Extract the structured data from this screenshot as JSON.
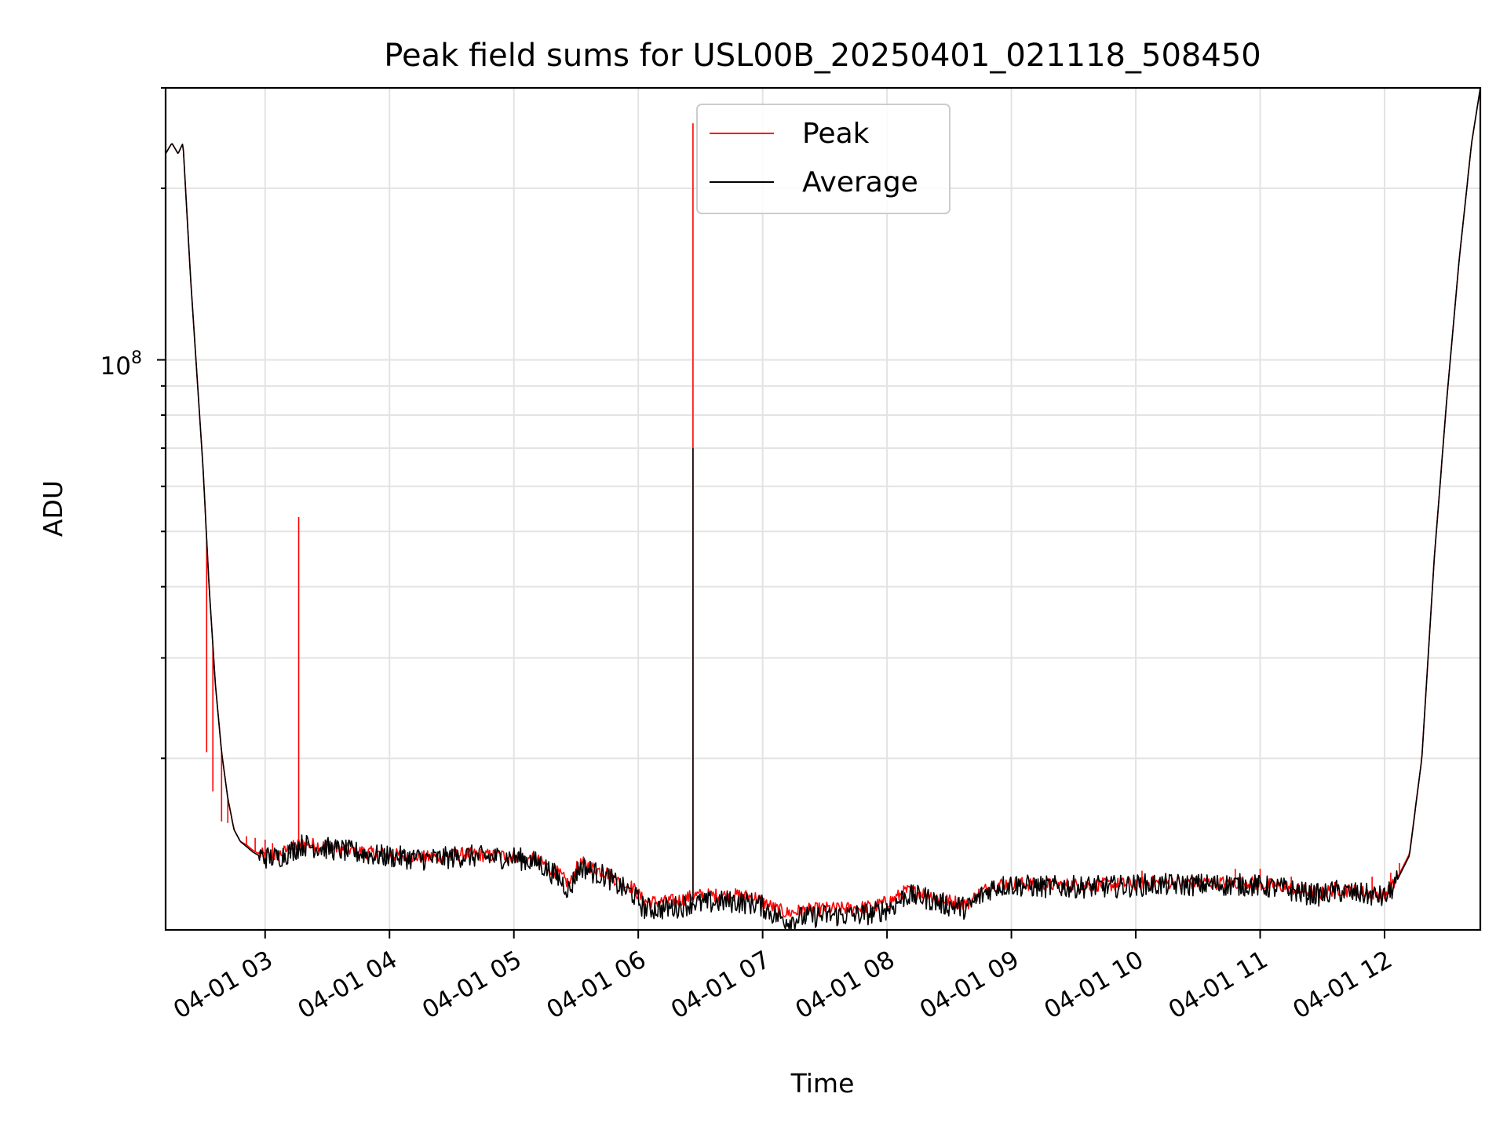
{
  "chart_data": {
    "type": "line",
    "title": "Peak field sums for USL00B_20250401_021118_508450",
    "xlabel": "Time",
    "ylabel": "ADU",
    "y_scale": "log",
    "x_range_hours": [
      2.2,
      12.77
    ],
    "ylim": [
      10000000,
      300000000
    ],
    "y_major_tick": {
      "value": 100000000,
      "label_base": "10",
      "label_exp": "8"
    },
    "x_ticks": [
      "04-01 03",
      "04-01 04",
      "04-01 05",
      "04-01 06",
      "04-01 07",
      "04-01 08",
      "04-01 09",
      "04-01 10",
      "04-01 11",
      "04-01 12"
    ],
    "grid": true,
    "legend": {
      "position": "top-center",
      "entries": [
        "Peak",
        "Average"
      ]
    },
    "colors": {
      "Peak": "#ff0000",
      "Average": "#000000"
    },
    "x": [
      2.2,
      2.25,
      2.3,
      2.34,
      2.4,
      2.5,
      2.55,
      2.6,
      2.65,
      2.7,
      2.75,
      2.8,
      2.85,
      2.9,
      2.95,
      3.0,
      3.1,
      3.2,
      3.3,
      3.4,
      3.5,
      3.7,
      3.9,
      4.1,
      4.3,
      4.5,
      4.6,
      4.8,
      5.0,
      5.2,
      5.35,
      5.45,
      5.5,
      5.55,
      5.65,
      5.75,
      5.85,
      5.95,
      6.05,
      6.2,
      6.35,
      6.45,
      6.5,
      6.65,
      6.8,
      6.95,
      7.0,
      7.1,
      7.2,
      7.3,
      7.5,
      7.7,
      7.9,
      8.05,
      8.15,
      8.3,
      8.45,
      8.55,
      8.65,
      8.72,
      8.85,
      9.0,
      9.2,
      9.5,
      9.8,
      10.1,
      10.4,
      10.7,
      10.9,
      11.05,
      11.2,
      11.35,
      11.5,
      11.6,
      11.75,
      11.9,
      12.0,
      12.05,
      12.1,
      12.2,
      12.3,
      12.4,
      12.5,
      12.6,
      12.7,
      12.77
    ],
    "series": [
      {
        "name": "Average",
        "values": [
          230000000,
          240000000,
          230000000,
          240000000,
          140000000,
          65000000,
          40000000,
          27000000,
          20500000,
          17000000,
          15000000,
          14300000,
          14000000,
          13700000,
          13500000,
          13400000,
          13400000,
          13700000,
          14100000,
          14000000,
          13900000,
          13700000,
          13500000,
          13400000,
          13300000,
          13400000,
          13500000,
          13400000,
          13400000,
          13100000,
          12400000,
          11700000,
          12600000,
          12900000,
          12600000,
          12400000,
          11900000,
          11600000,
          10900000,
          10900000,
          11000000,
          11200000,
          11100000,
          11200000,
          11200000,
          11100000,
          11000000,
          10600000,
          10400000,
          10500000,
          10600000,
          10600000,
          10700000,
          11000000,
          11500000,
          11400000,
          11100000,
          11000000,
          10900000,
          11300000,
          11900000,
          12000000,
          11900000,
          11900000,
          11900000,
          12000000,
          12000000,
          12000000,
          12000000,
          11900000,
          11800000,
          11600000,
          11500000,
          11700000,
          11600000,
          11500000,
          11400000,
          11700000,
          12200000,
          13500000,
          20000000,
          45000000,
          85000000,
          150000000,
          240000000,
          300000000
        ]
      },
      {
        "name": "Peak",
        "values": [
          230000000,
          240000000,
          230000000,
          240000000,
          140000000,
          65000000,
          40000000,
          27000000,
          20500000,
          17000000,
          15000000,
          14300000,
          14100000,
          13800000,
          13600000,
          13500000,
          13500000,
          13900000,
          14200000,
          14100000,
          14000000,
          13800000,
          13600000,
          13500000,
          13400000,
          13500000,
          13600000,
          13500000,
          13500000,
          13200000,
          12600000,
          12000000,
          12800000,
          13100000,
          12800000,
          12600000,
          12100000,
          11900000,
          11200000,
          11200000,
          11300000,
          11500000,
          11500000,
          11500000,
          11500000,
          11400000,
          11200000,
          10900000,
          10700000,
          10800000,
          10900000,
          10900000,
          11000000,
          11300000,
          11700000,
          11600000,
          11300000,
          11200000,
          11100000,
          11500000,
          12000000,
          12100000,
          12000000,
          12000000,
          12000000,
          12100000,
          12100000,
          12100000,
          12100000,
          12000000,
          11900000,
          11700000,
          11600000,
          11800000,
          11700000,
          11600000,
          11500000,
          11800000,
          12300000,
          13600000,
          20000000,
          45000000,
          85000000,
          150000000,
          240000000,
          300000000
        ]
      }
    ],
    "spikes": {
      "Peak": [
        [
          2.53,
          20500000
        ],
        [
          2.58,
          17500000
        ],
        [
          2.65,
          15500000
        ],
        [
          2.7,
          15400000
        ],
        [
          2.75,
          15100000
        ],
        [
          2.85,
          14600000
        ],
        [
          2.92,
          14500000
        ],
        [
          3.0,
          14400000
        ],
        [
          3.06,
          14200000
        ],
        [
          3.27,
          53000000
        ],
        [
          6.44,
          260000000
        ],
        [
          10.05,
          12700000
        ],
        [
          10.8,
          12800000
        ],
        [
          11.0,
          12800000
        ],
        [
          11.25,
          12400000
        ],
        [
          11.9,
          12400000
        ],
        [
          12.05,
          12600000
        ],
        [
          12.12,
          13100000
        ]
      ],
      "Average": [
        [
          3.27,
          14300000
        ],
        [
          6.44,
          70000000
        ]
      ]
    }
  }
}
